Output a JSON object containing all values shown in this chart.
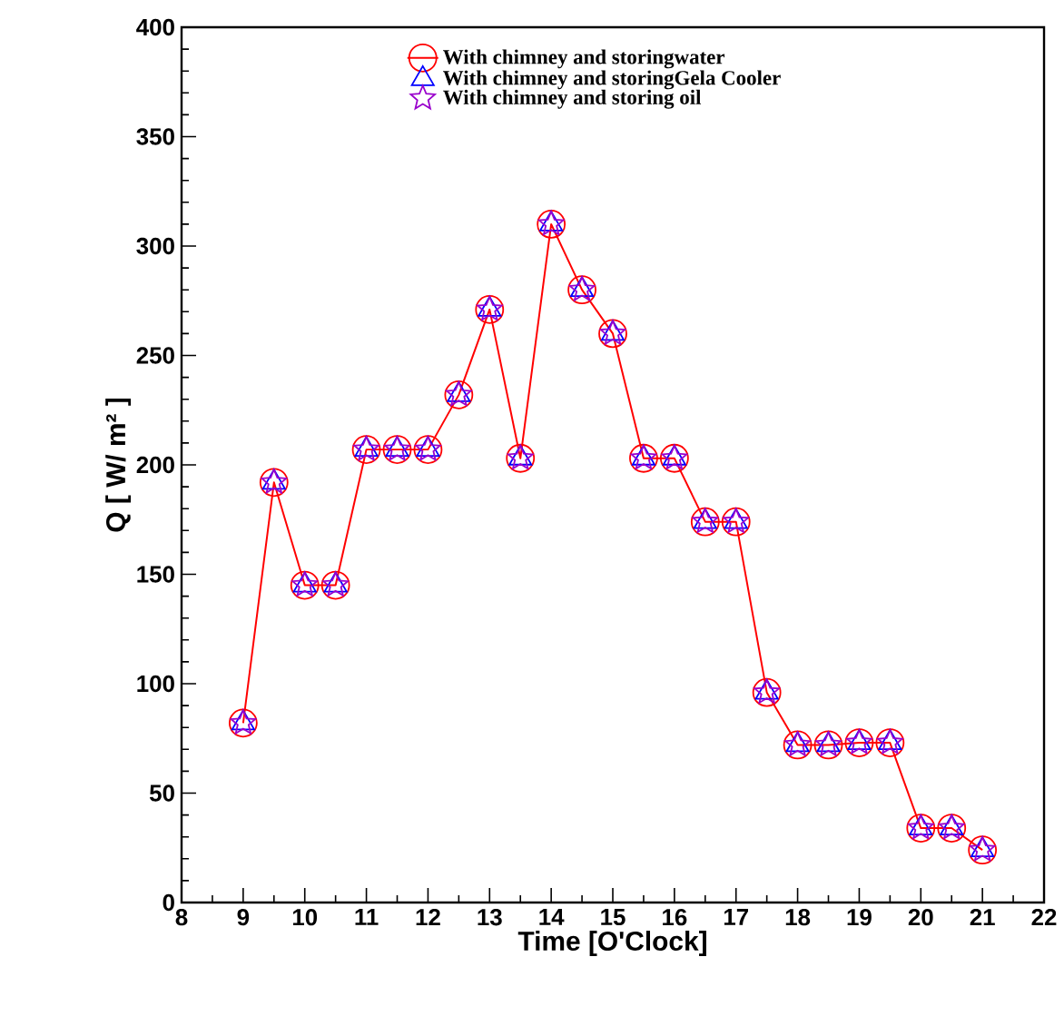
{
  "chart_data": {
    "type": "line",
    "xlabel": "Time [O'Clock]",
    "ylabel": "Q [ W/ m² ]",
    "x": [
      9,
      9.5,
      10,
      10.5,
      11,
      11.5,
      12,
      12.5,
      13,
      13.5,
      14,
      14.5,
      15,
      15.5,
      16,
      16.5,
      17,
      17.5,
      18,
      18.5,
      19,
      19.5,
      20,
      20.5,
      21
    ],
    "series": [
      {
        "name": "With chimney and storingwater",
        "color": "#ff0000",
        "marker": "circle",
        "line_style": "solid",
        "values": [
          82,
          192,
          145,
          145,
          207,
          207,
          207,
          232,
          271,
          203,
          310,
          280,
          260,
          203,
          203,
          174,
          174,
          96,
          72,
          72,
          73,
          73,
          34,
          34,
          24
        ]
      },
      {
        "name": "With chimney and storingGela Cooler",
        "type": "scatter",
        "color": "#0000ff",
        "marker": "triangle",
        "values": [
          82,
          192,
          145,
          145,
          207,
          207,
          207,
          232,
          271,
          203,
          310,
          280,
          260,
          203,
          203,
          174,
          174,
          96,
          72,
          72,
          73,
          73,
          34,
          34,
          24
        ]
      },
      {
        "name": "With chimney and storing oil",
        "type": "scatter",
        "color": "#9900cc",
        "marker": "star",
        "values": [
          82,
          192,
          145,
          145,
          207,
          207,
          207,
          232,
          271,
          203,
          310,
          280,
          260,
          203,
          203,
          174,
          174,
          96,
          72,
          72,
          73,
          73,
          34,
          34,
          24
        ]
      }
    ],
    "xlim": [
      8,
      22
    ],
    "xticks": [
      8,
      9,
      10,
      11,
      12,
      13,
      14,
      15,
      16,
      17,
      18,
      19,
      20,
      21,
      22
    ],
    "ylim": [
      0,
      400
    ],
    "yticks": [
      0,
      50,
      100,
      150,
      200,
      250,
      300,
      350,
      400
    ],
    "grid": false,
    "legend": "top"
  }
}
